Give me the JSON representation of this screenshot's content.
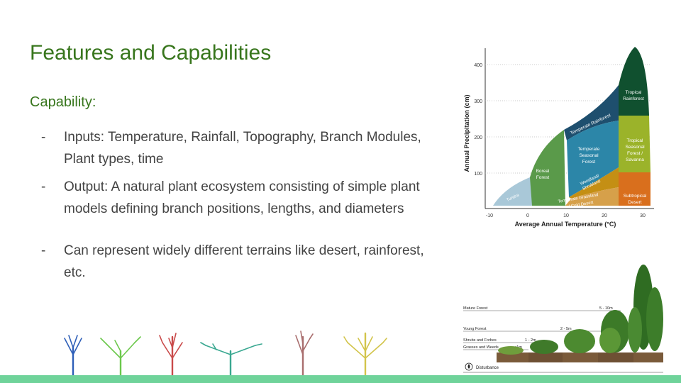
{
  "slide": {
    "title": "Features and Capabilities",
    "subtitle": "Capability:",
    "bullets": [
      {
        "dash": "-",
        "text": "Inputs: Temperature, Rainfall, Topography, Branch Modules, Plant types, time"
      },
      {
        "dash": "-",
        "text": "Output: A natural plant ecosystem consisting of simple plant models defining branch positions, lengths, and diameters"
      },
      {
        "dash": "-",
        "text": "Can represent widely different terrains like desert, rainforest, etc."
      }
    ]
  },
  "biome_chart": {
    "xlabel": "Average Annual Temperature (°C)",
    "ylabel": "Annual Precipitation (cm)",
    "x_ticks": [
      "-10",
      "0",
      "10",
      "20",
      "30"
    ],
    "y_ticks": [
      "100",
      "200",
      "300",
      "400"
    ],
    "regions": {
      "tundra": "Tundra",
      "boreal_1": "Boreal",
      "boreal_2": "Forest",
      "temp_rain": "Temperate Rainforest",
      "temp_seasonal_1": "Temperate",
      "temp_seasonal_2": "Seasonal",
      "temp_seasonal_3": "Forest",
      "tropical_rain_1": "Tropical",
      "tropical_rain_2": "Rainforest",
      "tropical_seasonal_1": "Tropical",
      "tropical_seasonal_2": "Seasonal",
      "tropical_seasonal_3": "Forest /",
      "tropical_seasonal_4": "Savanna",
      "woodland_1": "Woodland/",
      "woodland_2": "Shrubland",
      "grassland_1": "Temperate Grassland",
      "grassland_2": "/ Cold Desert",
      "subtropical_1": "Subtropical",
      "subtropical_2": "Desert"
    },
    "colors": {
      "tundra": "#a9c8d8",
      "boreal": "#5a9a4a",
      "temperate_rainforest": "#1e4f6e",
      "temperate_seasonal": "#2c86a8",
      "tropical_rainforest": "#10502f",
      "tropical_seasonal": "#9bb32a",
      "woodland": "#c48f14",
      "grassland": "#d6a04a",
      "subtropical_desert": "#d96f1d"
    }
  },
  "succession": {
    "mature_forest": "Mature Forest",
    "mature_height": "5 - 10m",
    "young_forest": "Young Forest",
    "young_height": "2 - 5m",
    "shrubs": "Shrubs and Forbes",
    "shrubs_height": "1 - 2m",
    "grasses": "Grasses and Weeds",
    "grasses_height": "<1m",
    "disturbance": "Disturbance"
  },
  "tree_models": {
    "colors": [
      "#2e5fb8",
      "#6cc84c",
      "#c94a4a",
      "#3aa891",
      "#a96e6e",
      "#d2c44a"
    ]
  }
}
